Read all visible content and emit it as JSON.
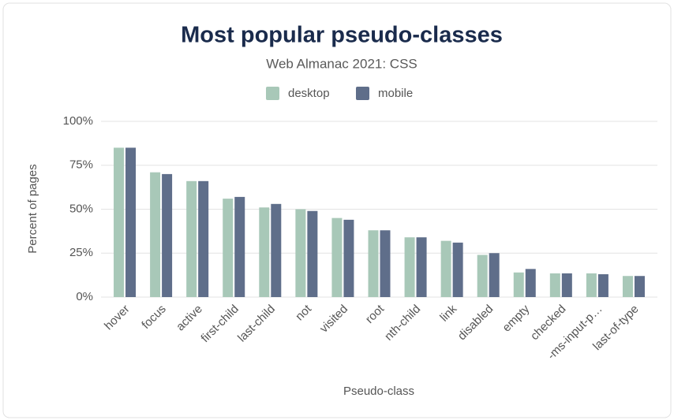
{
  "chart_data": {
    "type": "bar",
    "title": "Most popular pseudo-classes",
    "subtitle": "Web Almanac 2021: CSS",
    "x_label": "Pseudo-class",
    "y_label": "Percent of pages",
    "categories": [
      "hover",
      "focus",
      "active",
      "first-child",
      "last-child",
      "not",
      "visited",
      "root",
      "nth-child",
      "link",
      "disabled",
      "empty",
      "checked",
      "-ms-input-p…",
      "last-of-type"
    ],
    "series": [
      {
        "name": "desktop",
        "color": "#a8c8b8",
        "values": [
          85,
          71,
          66,
          56,
          51,
          50,
          45,
          38,
          34,
          32,
          24,
          14,
          13.5,
          13.5,
          12
        ]
      },
      {
        "name": "mobile",
        "color": "#5f6e8a",
        "values": [
          85,
          70,
          66,
          57,
          53,
          49,
          44,
          38,
          34,
          31,
          25,
          16,
          13.5,
          13,
          12
        ]
      }
    ],
    "ylim": [
      0,
      100
    ],
    "yticks": [
      {
        "value": 0,
        "label": "0%"
      },
      {
        "value": 25,
        "label": "25%"
      },
      {
        "value": 50,
        "label": "50%"
      },
      {
        "value": 75,
        "label": "75%"
      },
      {
        "value": 100,
        "label": "100%"
      }
    ],
    "grid": true,
    "legend": "top"
  }
}
